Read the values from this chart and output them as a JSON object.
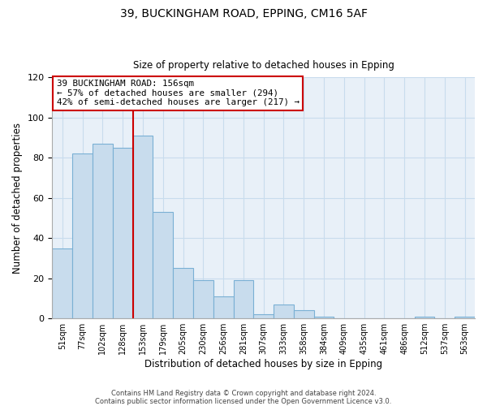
{
  "title1": "39, BUCKINGHAM ROAD, EPPING, CM16 5AF",
  "title2": "Size of property relative to detached houses in Epping",
  "xlabel": "Distribution of detached houses by size in Epping",
  "ylabel": "Number of detached properties",
  "bar_labels": [
    "51sqm",
    "77sqm",
    "102sqm",
    "128sqm",
    "153sqm",
    "179sqm",
    "205sqm",
    "230sqm",
    "256sqm",
    "281sqm",
    "307sqm",
    "333sqm",
    "358sqm",
    "384sqm",
    "409sqm",
    "435sqm",
    "461sqm",
    "486sqm",
    "512sqm",
    "537sqm",
    "563sqm"
  ],
  "bar_values": [
    35,
    82,
    87,
    85,
    91,
    53,
    25,
    19,
    11,
    19,
    2,
    7,
    4,
    1,
    0,
    0,
    0,
    0,
    1,
    0,
    1
  ],
  "bar_color": "#c8dced",
  "bar_edge_color": "#7ab0d4",
  "annotation_text_line1": "39 BUCKINGHAM ROAD: 156sqm",
  "annotation_text_line2": "← 57% of detached houses are smaller (294)",
  "annotation_text_line3": "42% of semi-detached houses are larger (217) →",
  "annotation_box_color": "#ffffff",
  "annotation_box_edge_color": "#cc0000",
  "vline_color": "#cc0000",
  "ylim": [
    0,
    120
  ],
  "yticks": [
    0,
    20,
    40,
    60,
    80,
    100,
    120
  ],
  "footnote1": "Contains HM Land Registry data © Crown copyright and database right 2024.",
  "footnote2": "Contains public sector information licensed under the Open Government Licence v3.0.",
  "bg_color": "#ffffff",
  "grid_color": "#c8dced"
}
